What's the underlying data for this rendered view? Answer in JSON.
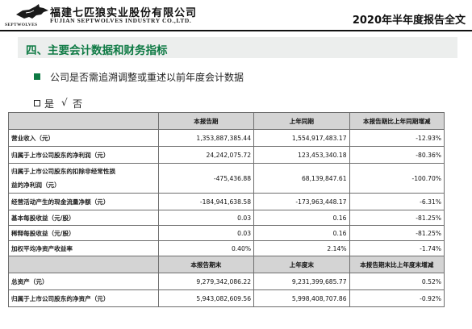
{
  "header": {
    "company_cn": "福建七匹狼实业股份有限公司",
    "company_en": "FUJIAN SEPTWOLVES INDUSTRY CO.,LTD.",
    "logo_text": "SEPTWOLVES",
    "doc_title": "2020年半年度报告全文"
  },
  "section": {
    "title": "四、主要会计数据和财务指标"
  },
  "question": {
    "text": "公司是否需追溯调整或重述以前年度会计数据"
  },
  "options": {
    "yes": "是",
    "check": "√",
    "no": "否"
  },
  "table": {
    "headers1": [
      "",
      "本报告期",
      "上年同期",
      "本报告期比上年同期增减"
    ],
    "rows1": [
      {
        "label": "营业收入（元）",
        "cur": "1,353,887,385.44",
        "prev": "1,554,917,483.17",
        "chg": "-12.93%"
      },
      {
        "label": "归属于上市公司股东的净利润（元）",
        "cur": "24,242,075.72",
        "prev": "123,453,340.18",
        "chg": "-80.36%"
      },
      {
        "label": "归属于上市公司股东的扣除非经常性损益的净利润（元）",
        "label_a": "归属于上市公司股东的扣除非经常性损",
        "label_b": "益的净利润（元）",
        "cur": "-475,436.88",
        "prev": "68,139,847.61",
        "chg": "-100.70%"
      },
      {
        "label": "经营活动产生的现金流量净额（元）",
        "cur": "-184,941,638.58",
        "prev": "-173,963,448.17",
        "chg": "-6.31%"
      },
      {
        "label": "基本每股收益（元/股）",
        "cur": "0.03",
        "prev": "0.16",
        "chg": "-81.25%"
      },
      {
        "label": "稀释每股收益（元/股）",
        "cur": "0.03",
        "prev": "0.16",
        "chg": "-81.25%"
      },
      {
        "label": "加权平均净资产收益率",
        "cur": "0.40%",
        "prev": "2.14%",
        "chg": "-1.74%"
      }
    ],
    "headers2": [
      "",
      "本报告期末",
      "上年度末",
      "本报告期末比上年度末增减"
    ],
    "rows2": [
      {
        "label": "总资产（元）",
        "cur": "9,279,342,086.22",
        "prev": "9,231,399,685.77",
        "chg": "0.52%"
      },
      {
        "label": "归属于上市公司股东的净资产（元）",
        "cur": "5,943,082,609.56",
        "prev": "5,998,408,707.86",
        "chg": "-0.92%"
      }
    ]
  }
}
